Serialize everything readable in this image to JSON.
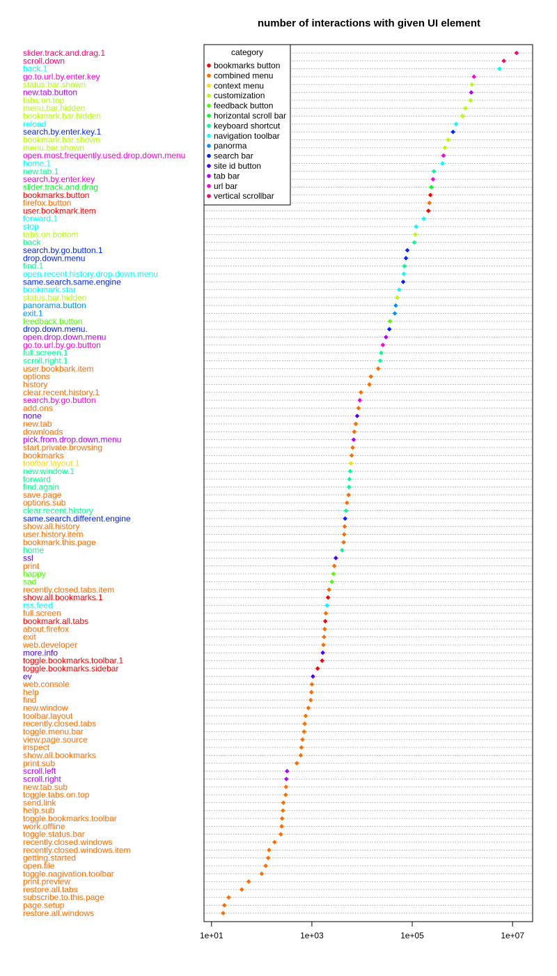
{
  "chart_data": {
    "type": "scatter",
    "title": "number of interactions with given UI element",
    "x_scale": "log10",
    "xlim": [
      10,
      20000000
    ],
    "x_ticks": [
      {
        "value": 10,
        "label": "1e+01"
      },
      {
        "value": 1000,
        "label": "1e+03"
      },
      {
        "value": 100000,
        "label": "1e+05"
      },
      {
        "value": 10000000,
        "label": "1e+07"
      }
    ],
    "grid": "dotted horizontal lines",
    "legend": {
      "title": "category",
      "position": "top-left",
      "entries": [
        {
          "name": "bookmarks button",
          "color": "#FF0000"
        },
        {
          "name": "combined menu",
          "color": "#FF6D00"
        },
        {
          "name": "context menu",
          "color": "#FFDB00"
        },
        {
          "name": "customization",
          "color": "#B6FF00"
        },
        {
          "name": "feedback button",
          "color": "#49FF00"
        },
        {
          "name": "horizontal scroll bar",
          "color": "#00FF24"
        },
        {
          "name": "keyboard shortcut",
          "color": "#00FF92"
        },
        {
          "name": "navigation toolbar",
          "color": "#00FFFF"
        },
        {
          "name": "panorma",
          "color": "#0092FF"
        },
        {
          "name": "search bar",
          "color": "#0024FF"
        },
        {
          "name": "site id button",
          "color": "#4900FF"
        },
        {
          "name": "tab bar",
          "color": "#B600FF"
        },
        {
          "name": "url bar",
          "color": "#FF00DB"
        },
        {
          "name": "vertical scrollbar",
          "color": "#FF006D"
        }
      ]
    },
    "points": [
      {
        "label": "slider.track.and.drag.1",
        "category": "vertical scrollbar",
        "x": 12000000
      },
      {
        "label": "scroll.down",
        "category": "vertical scrollbar",
        "x": 6700000
      },
      {
        "label": "back.1",
        "category": "navigation toolbar",
        "x": 5500000
      },
      {
        "label": "go.to.url.by.enter.key",
        "category": "url bar",
        "x": 1700000
      },
      {
        "label": "status.bar.shown",
        "category": "customization",
        "x": 1550000
      },
      {
        "label": "new.tab.button",
        "category": "tab bar",
        "x": 1500000
      },
      {
        "label": "tabs.on.top",
        "category": "customization",
        "x": 1450000
      },
      {
        "label": "menu.bar.hidden",
        "category": "customization",
        "x": 1150000
      },
      {
        "label": "bookmark.bar.hidden",
        "category": "customization",
        "x": 1000000
      },
      {
        "label": "reload",
        "category": "navigation toolbar",
        "x": 750000
      },
      {
        "label": "search.by.enter.key.1",
        "category": "search bar",
        "x": 650000
      },
      {
        "label": "bookmark.bar.shown",
        "category": "customization",
        "x": 520000
      },
      {
        "label": "menu.bar.shown",
        "category": "customization",
        "x": 450000
      },
      {
        "label": "open.most.frequently.used.drop.down.menu",
        "category": "url bar",
        "x": 420000
      },
      {
        "label": "home.1",
        "category": "navigation toolbar",
        "x": 400000
      },
      {
        "label": "new.tab.1",
        "category": "keyboard shortcut",
        "x": 270000
      },
      {
        "label": "search.by.enter.key",
        "category": "url bar",
        "x": 260000
      },
      {
        "label": "slider.track.and.drag",
        "category": "horizontal scroll bar",
        "x": 240000
      },
      {
        "label": "bookmarks.button",
        "category": "bookmarks button",
        "x": 230000
      },
      {
        "label": "firefox.button",
        "category": "combined menu",
        "x": 220000
      },
      {
        "label": "user.bookmark.item",
        "category": "bookmarks button",
        "x": 210000
      },
      {
        "label": "forward.1",
        "category": "navigation toolbar",
        "x": 170000
      },
      {
        "label": "stop",
        "category": "navigation toolbar",
        "x": 120000
      },
      {
        "label": "tabs.on.bottom",
        "category": "customization",
        "x": 115000
      },
      {
        "label": "back",
        "category": "keyboard shortcut",
        "x": 110000
      },
      {
        "label": "search.by.go.button.1",
        "category": "search bar",
        "x": 80000
      },
      {
        "label": "drop.down.menu",
        "category": "search bar",
        "x": 75000
      },
      {
        "label": "find.1",
        "category": "keyboard shortcut",
        "x": 70000
      },
      {
        "label": "open.recent.history.drop.down.menu",
        "category": "navigation toolbar",
        "x": 68000
      },
      {
        "label": "same.search.same.engine",
        "category": "search bar",
        "x": 66000
      },
      {
        "label": "bookmark.star",
        "category": "navigation toolbar",
        "x": 55000
      },
      {
        "label": "status.bar.hidden",
        "category": "customization",
        "x": 50000
      },
      {
        "label": "panorama.button",
        "category": "panorma",
        "x": 47000
      },
      {
        "label": "exit.1",
        "category": "panorma",
        "x": 45000
      },
      {
        "label": "feedback.button",
        "category": "feedback button",
        "x": 36000
      },
      {
        "label": "drop.down.menu.",
        "category": "search bar",
        "x": 35000
      },
      {
        "label": "open.drop.down.menu",
        "category": "tab bar",
        "x": 30000
      },
      {
        "label": "go.to.url.by.go.button",
        "category": "url bar",
        "x": 26000
      },
      {
        "label": "full.screen.1",
        "category": "keyboard shortcut",
        "x": 24000
      },
      {
        "label": "scroll.right.1",
        "category": "keyboard shortcut",
        "x": 23000
      },
      {
        "label": "user.bookbark.item",
        "category": "combined menu",
        "x": 21000
      },
      {
        "label": "options",
        "category": "combined menu",
        "x": 15000
      },
      {
        "label": "history",
        "category": "combined menu",
        "x": 14000
      },
      {
        "label": "clear.recent.history.1",
        "category": "combined menu",
        "x": 9500
      },
      {
        "label": "search.by.go.button",
        "category": "url bar",
        "x": 9000
      },
      {
        "label": "add.ons",
        "category": "combined menu",
        "x": 8500
      },
      {
        "label": "none",
        "category": "site id button",
        "x": 8000
      },
      {
        "label": "new.tab",
        "category": "combined menu",
        "x": 7500
      },
      {
        "label": "downloads",
        "category": "combined menu",
        "x": 7000
      },
      {
        "label": "pick.from.drop.down.menu",
        "category": "tab bar",
        "x": 6800
      },
      {
        "label": "start.private.browsing",
        "category": "combined menu",
        "x": 6500
      },
      {
        "label": "bookmarks",
        "category": "combined menu",
        "x": 6200
      },
      {
        "label": "toolbar.layout.1",
        "category": "context menu",
        "x": 6000
      },
      {
        "label": "new.window.1",
        "category": "keyboard shortcut",
        "x": 5800
      },
      {
        "label": "forward",
        "category": "keyboard shortcut",
        "x": 5600
      },
      {
        "label": "find.again",
        "category": "keyboard shortcut",
        "x": 5500
      },
      {
        "label": "save.page",
        "category": "combined menu",
        "x": 5400
      },
      {
        "label": "options.sub",
        "category": "combined menu",
        "x": 5000
      },
      {
        "label": "clear.recent.history",
        "category": "keyboard shortcut",
        "x": 4800
      },
      {
        "label": "same.search.different.engine",
        "category": "search bar",
        "x": 4600
      },
      {
        "label": "show.all.history",
        "category": "combined menu",
        "x": 4500
      },
      {
        "label": "user.history.item",
        "category": "combined menu",
        "x": 4400
      },
      {
        "label": "bookmark.this.page",
        "category": "combined menu",
        "x": 4300
      },
      {
        "label": "home",
        "category": "keyboard shortcut",
        "x": 4000
      },
      {
        "label": "ssl",
        "category": "site id button",
        "x": 3000
      },
      {
        "label": "print",
        "category": "combined menu",
        "x": 2800
      },
      {
        "label": "happy",
        "category": "feedback button",
        "x": 2700
      },
      {
        "label": "sad",
        "category": "feedback button",
        "x": 2500
      },
      {
        "label": "recently.closed.tabs.item",
        "category": "combined menu",
        "x": 2200
      },
      {
        "label": "show.all.bookmarks.1",
        "category": "bookmarks button",
        "x": 2100
      },
      {
        "label": "rss.feed",
        "category": "navigation toolbar",
        "x": 2000
      },
      {
        "label": "full.screen",
        "category": "combined menu",
        "x": 1900
      },
      {
        "label": "bookmark.all.tabs",
        "category": "bookmarks button",
        "x": 1850
      },
      {
        "label": "about.firefox",
        "category": "combined menu",
        "x": 1800
      },
      {
        "label": "exit",
        "category": "combined menu",
        "x": 1750
      },
      {
        "label": "web.developer",
        "category": "combined menu",
        "x": 1700
      },
      {
        "label": "more.info",
        "category": "site id button",
        "x": 1650
      },
      {
        "label": "toggle.bookmarks.toolbar.1",
        "category": "bookmarks button",
        "x": 1600
      },
      {
        "label": "toggle.bookmarks.sidebar",
        "category": "bookmarks button",
        "x": 1300
      },
      {
        "label": "ev",
        "category": "site id button",
        "x": 1050
      },
      {
        "label": "web.console",
        "category": "combined menu",
        "x": 1000
      },
      {
        "label": "help",
        "category": "combined menu",
        "x": 980
      },
      {
        "label": "find",
        "category": "combined menu",
        "x": 950
      },
      {
        "label": "new.window",
        "category": "combined menu",
        "x": 850
      },
      {
        "label": "toolbar.layout",
        "category": "combined menu",
        "x": 750
      },
      {
        "label": "recently.closed.tabs",
        "category": "combined menu",
        "x": 720
      },
      {
        "label": "toggle.menu.bar",
        "category": "combined menu",
        "x": 700
      },
      {
        "label": "view.page.source",
        "category": "combined menu",
        "x": 650
      },
      {
        "label": "inspect",
        "category": "combined menu",
        "x": 620
      },
      {
        "label": "show.all.bookmarks",
        "category": "combined menu",
        "x": 600
      },
      {
        "label": "print.sub",
        "category": "combined menu",
        "x": 500
      },
      {
        "label": "scroll.left",
        "category": "tab bar",
        "x": 320
      },
      {
        "label": "scroll.right",
        "category": "tab bar",
        "x": 310
      },
      {
        "label": "new.tab.sub",
        "category": "combined menu",
        "x": 305
      },
      {
        "label": "toggle.tabs.on.top",
        "category": "combined menu",
        "x": 300
      },
      {
        "label": "send.link",
        "category": "combined menu",
        "x": 270
      },
      {
        "label": "help.sub",
        "category": "combined menu",
        "x": 265
      },
      {
        "label": "toggle.bookmarks.toolbar",
        "category": "combined menu",
        "x": 255
      },
      {
        "label": "work.offline",
        "category": "combined menu",
        "x": 250
      },
      {
        "label": "toggle.status.bar",
        "category": "combined menu",
        "x": 240
      },
      {
        "label": "recently.closed.windows",
        "category": "combined menu",
        "x": 180
      },
      {
        "label": "recently.closed.windows.item",
        "category": "combined menu",
        "x": 140
      },
      {
        "label": "getting.started",
        "category": "combined menu",
        "x": 135
      },
      {
        "label": "open.file",
        "category": "combined menu",
        "x": 120
      },
      {
        "label": "toggle.nagivation.toolbar",
        "category": "combined menu",
        "x": 100
      },
      {
        "label": "print.preview",
        "category": "combined menu",
        "x": 55
      },
      {
        "label": "restore.all.tabs",
        "category": "combined menu",
        "x": 40
      },
      {
        "label": "subscribe.to.this.page",
        "category": "combined menu",
        "x": 22
      },
      {
        "label": "page.setup",
        "category": "combined menu",
        "x": 18
      },
      {
        "label": "restore.all.windows",
        "category": "combined menu",
        "x": 17
      }
    ]
  }
}
